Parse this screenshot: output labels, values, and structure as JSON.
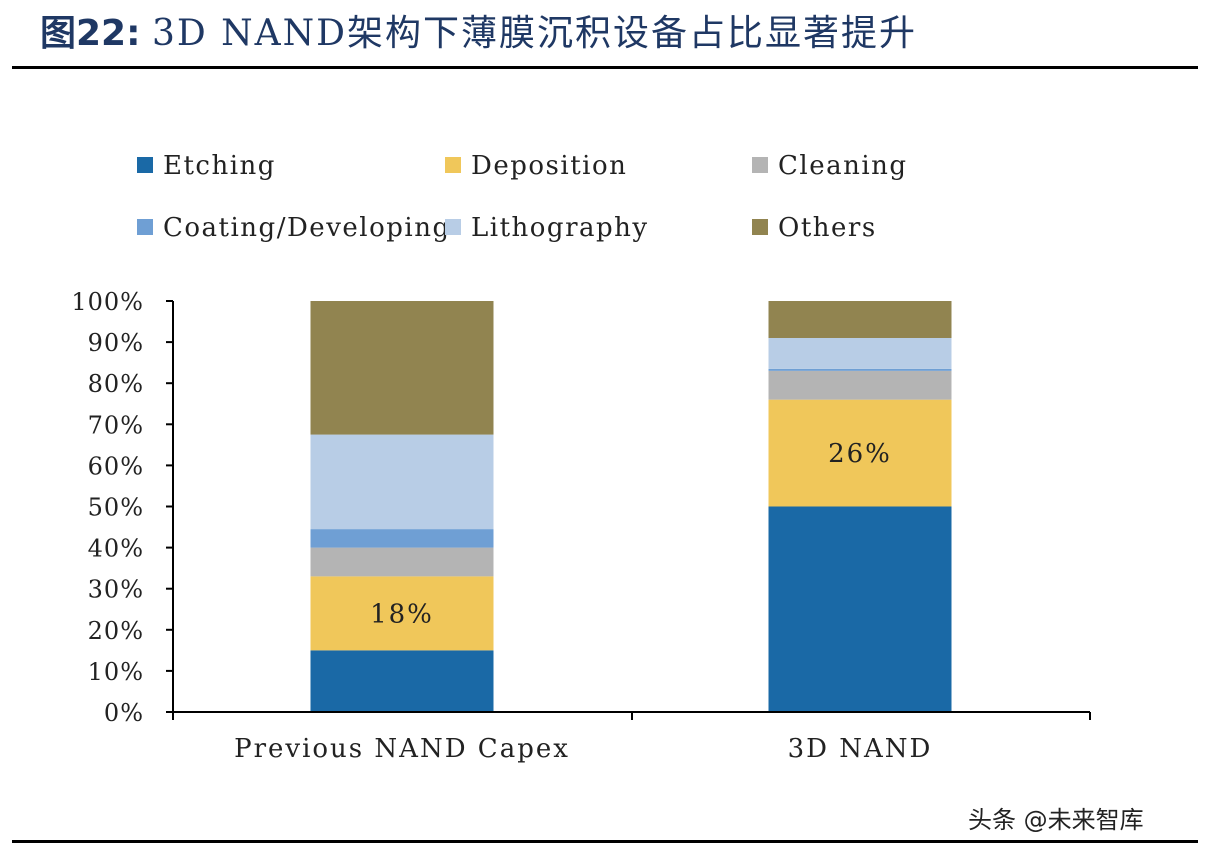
{
  "header": {
    "figure_label": "图22:",
    "title": "3D NAND架构下薄膜沉积设备占比显著提升"
  },
  "watermark": "头条 @未来智库",
  "colors": {
    "Etching": "#1a69a6",
    "Deposition": "#f0c75a",
    "Cleaning": "#b4b4b4",
    "Coating/Developing": "#6f9fd4",
    "Lithography": "#b8cde6",
    "Others": "#918450"
  },
  "chart_data": {
    "type": "bar",
    "stacked": true,
    "title": "",
    "xlabel": "",
    "ylabel": "",
    "ylim": [
      0,
      100
    ],
    "ytick_labels": [
      "0%",
      "10%",
      "20%",
      "30%",
      "40%",
      "50%",
      "60%",
      "70%",
      "80%",
      "90%",
      "100%"
    ],
    "categories": [
      "Previous NAND Capex",
      "3D NAND"
    ],
    "legend_position": "top",
    "grid": false,
    "series": [
      {
        "name": "Etching",
        "values": [
          15,
          50
        ]
      },
      {
        "name": "Deposition",
        "values": [
          18,
          26
        ]
      },
      {
        "name": "Cleaning",
        "values": [
          7,
          7
        ]
      },
      {
        "name": "Coating/Developing",
        "values": [
          4.5,
          0.5
        ]
      },
      {
        "name": "Lithography",
        "values": [
          23,
          7.5
        ]
      },
      {
        "name": "Others",
        "values": [
          32.5,
          9
        ]
      }
    ],
    "data_labels": [
      {
        "series": "Deposition",
        "category": "Previous NAND Capex",
        "text": "18%"
      },
      {
        "series": "Deposition",
        "category": "3D NAND",
        "text": "26%"
      }
    ]
  }
}
